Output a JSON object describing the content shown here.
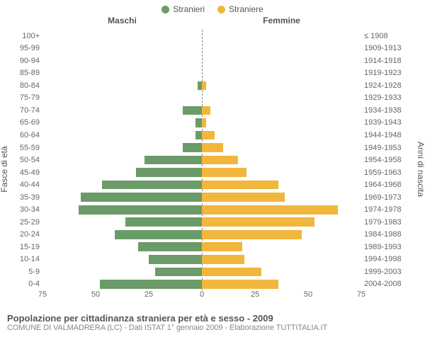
{
  "legend": {
    "male_label": "Stranieri",
    "female_label": "Straniere"
  },
  "headers": {
    "male": "Maschi",
    "female": "Femmine"
  },
  "axis_titles": {
    "left": "Fasce di età",
    "right": "Anni di nascita"
  },
  "colors": {
    "male": "#6a9b68",
    "female": "#f1b63c",
    "background": "#ffffff",
    "text": "#666666",
    "center_line": "#888888"
  },
  "chart": {
    "xmax": 75,
    "xticks_left": [
      75,
      50,
      25,
      0
    ],
    "xticks_right": [
      0,
      25,
      50,
      75
    ],
    "font_size_labels": 11,
    "font_size_legend": 12
  },
  "rows": [
    {
      "age": "100+",
      "birth": "≤ 1908",
      "m": 0,
      "f": 0
    },
    {
      "age": "95-99",
      "birth": "1909-1913",
      "m": 0,
      "f": 0
    },
    {
      "age": "90-94",
      "birth": "1914-1918",
      "m": 0,
      "f": 0
    },
    {
      "age": "85-89",
      "birth": "1919-1923",
      "m": 0,
      "f": 0
    },
    {
      "age": "80-84",
      "birth": "1924-1928",
      "m": 2,
      "f": 2
    },
    {
      "age": "75-79",
      "birth": "1929-1933",
      "m": 0,
      "f": 0
    },
    {
      "age": "70-74",
      "birth": "1934-1938",
      "m": 9,
      "f": 4
    },
    {
      "age": "65-69",
      "birth": "1939-1943",
      "m": 3,
      "f": 2
    },
    {
      "age": "60-64",
      "birth": "1944-1948",
      "m": 3,
      "f": 6
    },
    {
      "age": "55-59",
      "birth": "1949-1953",
      "m": 9,
      "f": 10
    },
    {
      "age": "50-54",
      "birth": "1954-1958",
      "m": 27,
      "f": 17
    },
    {
      "age": "45-49",
      "birth": "1959-1963",
      "m": 31,
      "f": 21
    },
    {
      "age": "40-44",
      "birth": "1964-1968",
      "m": 47,
      "f": 36
    },
    {
      "age": "35-39",
      "birth": "1969-1973",
      "m": 57,
      "f": 39
    },
    {
      "age": "30-34",
      "birth": "1974-1978",
      "m": 58,
      "f": 64
    },
    {
      "age": "25-29",
      "birth": "1979-1983",
      "m": 36,
      "f": 53
    },
    {
      "age": "20-24",
      "birth": "1984-1988",
      "m": 41,
      "f": 47
    },
    {
      "age": "15-19",
      "birth": "1989-1993",
      "m": 30,
      "f": 19
    },
    {
      "age": "10-14",
      "birth": "1994-1998",
      "m": 25,
      "f": 20
    },
    {
      "age": "5-9",
      "birth": "1999-2003",
      "m": 22,
      "f": 28
    },
    {
      "age": "0-4",
      "birth": "2004-2008",
      "m": 48,
      "f": 36
    }
  ],
  "footer": {
    "title": "Popolazione per cittadinanza straniera per età e sesso - 2009",
    "subtitle": "COMUNE DI VALMADRERA (LC) - Dati ISTAT 1° gennaio 2009 - Elaborazione TUTTITALIA.IT"
  }
}
